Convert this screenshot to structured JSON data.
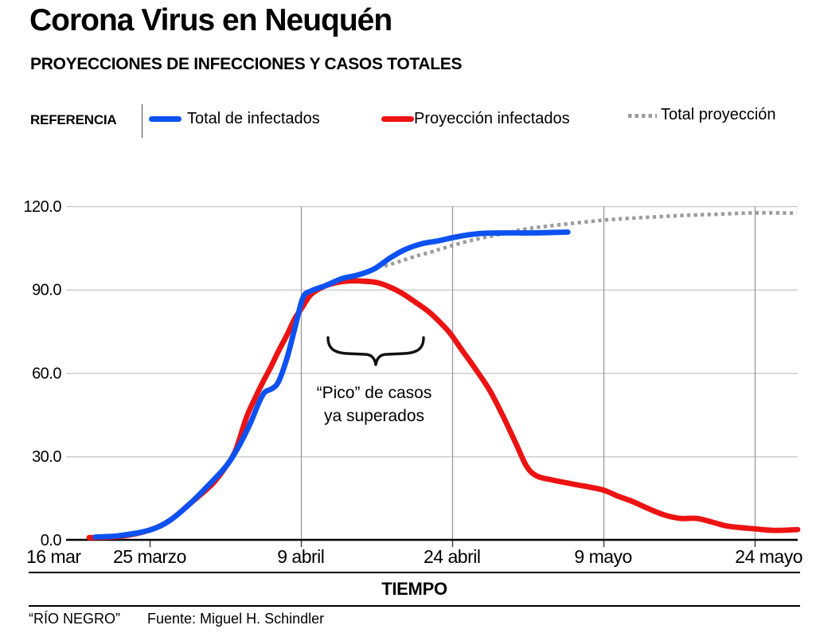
{
  "header": {
    "title": "Corona Virus en Neuquén",
    "subtitle": "PROYECCIONES DE INFECCIONES Y CASOS TOTALES"
  },
  "legend": {
    "label": "REFERENCIA",
    "items": [
      {
        "name": "Total de infectados",
        "color": "#0d52f0",
        "style": "solid"
      },
      {
        "name": "Proyección infectados",
        "color": "#ec1313",
        "style": "solid"
      },
      {
        "name": "Total proyección",
        "color": "#9c9c9c",
        "style": "dotted"
      }
    ]
  },
  "annotation": {
    "line1": "“Pico” de casos",
    "line2": "ya superados"
  },
  "x_axis_title": "TIEMPO",
  "footer": {
    "brand": "“RÍO NEGRO”",
    "source": "Fuente: Miguel H. Schindler"
  },
  "chart_data": {
    "type": "line",
    "title": "Corona Virus en Neuquén",
    "xlabel": "TIEMPO",
    "ylabel": "",
    "x_unit": "days since 16 mar",
    "xlim": [
      0,
      73.5
    ],
    "ylim": [
      0,
      120
    ],
    "grid": true,
    "legend_position": "top",
    "x_tick_days": [
      0,
      9,
      24,
      39,
      54,
      69
    ],
    "x_tick_labels": [
      "16 mar",
      "25 marzo",
      "9 abril",
      "24 abril",
      "9 mayo",
      "24 mayo"
    ],
    "y_ticks": [
      0,
      30,
      60,
      90,
      120
    ],
    "y_tick_labels": [
      "0.0",
      "30.0",
      "60.0",
      "90.0",
      "120.0"
    ],
    "series": [
      {
        "name": "Total de infectados",
        "color": "#0d52f0",
        "dash": false,
        "points": [
          [
            3.6,
            1
          ],
          [
            6,
            1.5
          ],
          [
            9,
            3.5
          ],
          [
            11,
            7
          ],
          [
            13,
            13
          ],
          [
            15.2,
            21
          ],
          [
            16.7,
            27
          ],
          [
            17.9,
            34
          ],
          [
            19,
            42
          ],
          [
            19.8,
            49
          ],
          [
            20.4,
            53
          ],
          [
            21.2,
            54.5
          ],
          [
            21.8,
            57
          ],
          [
            22.6,
            65
          ],
          [
            23.4,
            76
          ],
          [
            24.2,
            87
          ],
          [
            25,
            89.5
          ],
          [
            26.5,
            91.5
          ],
          [
            28.1,
            94
          ],
          [
            29.7,
            95.3
          ],
          [
            31.3,
            97.5
          ],
          [
            32.9,
            101.5
          ],
          [
            34.4,
            104.5
          ],
          [
            36,
            106.5
          ],
          [
            37.6,
            107.5
          ],
          [
            39.2,
            108.8
          ],
          [
            40.8,
            109.8
          ],
          [
            42.3,
            110.3
          ],
          [
            44.7,
            110.4
          ],
          [
            47.1,
            110.4
          ],
          [
            49.4,
            110.6
          ],
          [
            50.5,
            110.7
          ]
        ]
      },
      {
        "name": "Proyección infectados",
        "color": "#ec1313",
        "dash": false,
        "points": [
          [
            3,
            0.8
          ],
          [
            6,
            1.2
          ],
          [
            9,
            3.5
          ],
          [
            11,
            7
          ],
          [
            13,
            13
          ],
          [
            15.2,
            20
          ],
          [
            16.5,
            26
          ],
          [
            17.5,
            32
          ],
          [
            18.6,
            44
          ],
          [
            19.4,
            50.5
          ],
          [
            20.2,
            56.5
          ],
          [
            21,
            62
          ],
          [
            21.8,
            68
          ],
          [
            22.6,
            73.5
          ],
          [
            23.4,
            79.5
          ],
          [
            24.2,
            84
          ],
          [
            25,
            88.2
          ],
          [
            26.2,
            91
          ],
          [
            27.5,
            92.5
          ],
          [
            28.9,
            93.1
          ],
          [
            30.4,
            93
          ],
          [
            31.6,
            92.5
          ],
          [
            32.8,
            91
          ],
          [
            34,
            88.8
          ],
          [
            35.4,
            85.4
          ],
          [
            36.8,
            81.7
          ],
          [
            38.2,
            76.8
          ],
          [
            38.9,
            73.9
          ],
          [
            40,
            68.2
          ],
          [
            41.3,
            61.6
          ],
          [
            42.7,
            54
          ],
          [
            44,
            45
          ],
          [
            45.3,
            35
          ],
          [
            46.4,
            26.5
          ],
          [
            47.4,
            23
          ],
          [
            49,
            21.5
          ],
          [
            51.1,
            20
          ],
          [
            53.9,
            18
          ],
          [
            55.4,
            15.8
          ],
          [
            56.9,
            13.8
          ],
          [
            58.5,
            11.2
          ],
          [
            60.1,
            8.9
          ],
          [
            61.7,
            7.7
          ],
          [
            63.3,
            7.7
          ],
          [
            64.9,
            6.3
          ],
          [
            66.4,
            4.9
          ],
          [
            68.9,
            4
          ],
          [
            70.9,
            3.4
          ],
          [
            73.3,
            3.7
          ]
        ]
      },
      {
        "name": "Total proyección",
        "color": "#9c9c9c",
        "dash": true,
        "points": [
          [
            32.3,
            98.5
          ],
          [
            33.7,
            100
          ],
          [
            35.2,
            101.8
          ],
          [
            36.8,
            103.4
          ],
          [
            38.4,
            105.2
          ],
          [
            41,
            107.8
          ],
          [
            43.9,
            110
          ],
          [
            46.3,
            111.8
          ],
          [
            49.4,
            113.2
          ],
          [
            53.8,
            114.9
          ],
          [
            57.3,
            115.8
          ],
          [
            62.1,
            116.7
          ],
          [
            65.2,
            117.1
          ],
          [
            69,
            117.6
          ],
          [
            73.2,
            117.5
          ]
        ]
      }
    ]
  }
}
